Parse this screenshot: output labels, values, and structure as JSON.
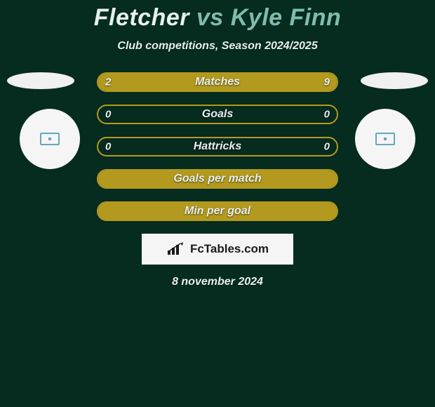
{
  "background_color": "#062b1f",
  "title": {
    "player1": "Fletcher",
    "vs": "vs",
    "player2": "Kyle Finn",
    "player1_color": "#e6f0ef",
    "vs_color": "#7fbdae",
    "player2_color": "#7fbdae"
  },
  "subtitle": "Club competitions, Season 2024/2025",
  "bars": [
    {
      "label": "Matches",
      "left_value": "2",
      "right_value": "9",
      "left_num": 2,
      "right_num": 9,
      "border_color": "#b39a1f",
      "left_fill_color": "#b39a1f",
      "right_fill_color": "#b39a1f"
    },
    {
      "label": "Goals",
      "left_value": "0",
      "right_value": "0",
      "left_num": 0,
      "right_num": 0,
      "border_color": "#b39a1f",
      "left_fill_color": "#b39a1f",
      "right_fill_color": "#b39a1f"
    },
    {
      "label": "Hattricks",
      "left_value": "0",
      "right_value": "0",
      "left_num": 0,
      "right_num": 0,
      "border_color": "#b39a1f",
      "left_fill_color": "#b39a1f",
      "right_fill_color": "#b39a1f"
    },
    {
      "label": "Goals per match",
      "left_value": "",
      "right_value": "",
      "left_num": 0,
      "right_num": 0,
      "border_color": "#b39a1f",
      "left_fill_color": "#b39a1f",
      "right_fill_color": "#b39a1f",
      "full_fill": true
    },
    {
      "label": "Min per goal",
      "left_value": "",
      "right_value": "",
      "left_num": 0,
      "right_num": 0,
      "border_color": "#b39a1f",
      "left_fill_color": "#b39a1f",
      "right_fill_color": "#b39a1f",
      "full_fill": true
    }
  ],
  "footer": {
    "brand": "FcTables.com",
    "date": "8 november 2024"
  }
}
